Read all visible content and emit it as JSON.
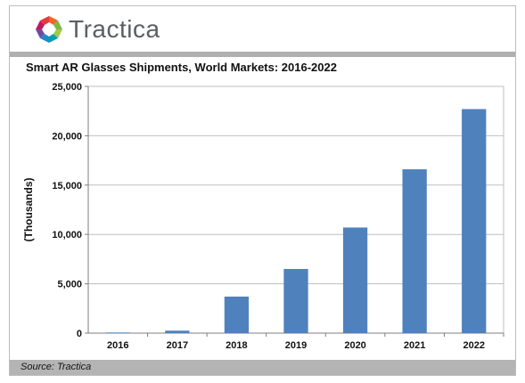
{
  "brand": {
    "name": "Tractica",
    "logo_icon": "tractica-logo-icon"
  },
  "source": "Source: Tractica",
  "colors": {
    "bar": "#4f81bd",
    "axis": "#7f7f7f",
    "grid": "#bfbfbf",
    "frame": "#bdbdbd",
    "rule": "#b0b0b0"
  },
  "chart_data": {
    "type": "bar",
    "title": "Smart AR Glasses Shipments, World Markets: 2016-2022",
    "xlabel": "",
    "ylabel": "(Thousands)",
    "categories": [
      "2016",
      "2017",
      "2018",
      "2019",
      "2020",
      "2021",
      "2022"
    ],
    "values": [
      60,
      250,
      3700,
      6500,
      10700,
      16600,
      22700
    ],
    "ylim": [
      0,
      25000
    ],
    "yticks": [
      0,
      5000,
      10000,
      15000,
      20000,
      25000
    ],
    "ytick_labels": [
      "0",
      "5,000",
      "10,000",
      "15,000",
      "20,000",
      "25,000"
    ],
    "grid": true,
    "legend": "none"
  }
}
